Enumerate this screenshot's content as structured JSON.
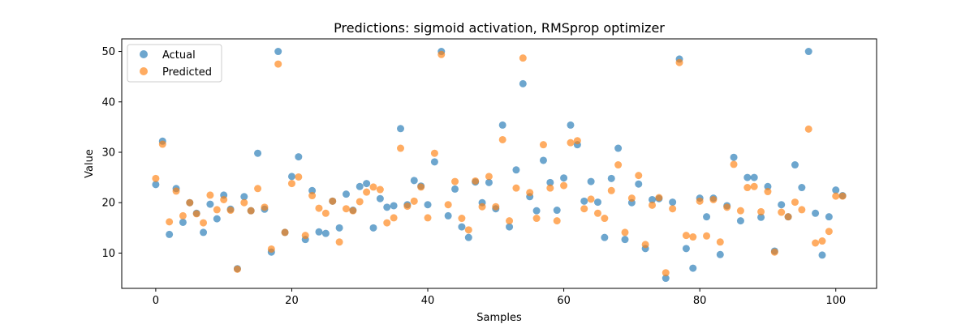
{
  "chart_data": {
    "type": "scatter",
    "title": "Predictions: sigmoid activation, RMSprop optimizer",
    "xlabel": "Samples",
    "ylabel": "Value",
    "xlim": [
      -5,
      106
    ],
    "ylim": [
      3,
      52.5
    ],
    "xticks": [
      0,
      20,
      40,
      60,
      80,
      100
    ],
    "yticks": [
      10,
      20,
      30,
      40,
      50
    ],
    "grid": false,
    "legend_position": "top-left",
    "series": [
      {
        "name": "Actual",
        "color": "#1f77b4",
        "values": [
          23.6,
          32.2,
          13.7,
          22.8,
          16.1,
          20.0,
          17.9,
          14.1,
          19.7,
          16.8,
          21.5,
          18.7,
          6.9,
          21.2,
          18.4,
          29.8,
          18.7,
          10.2,
          50.0,
          14.1,
          25.2,
          29.1,
          12.7,
          22.4,
          14.2,
          13.9,
          20.3,
          15.0,
          21.7,
          18.5,
          23.2,
          23.8,
          15.0,
          20.8,
          19.1,
          19.4,
          34.7,
          19.6,
          24.4,
          23.3,
          19.6,
          28.1,
          50.0,
          17.4,
          22.7,
          15.2,
          13.1,
          24.1,
          20.0,
          24.0,
          18.8,
          35.4,
          15.2,
          26.5,
          43.6,
          21.2,
          18.4,
          28.4,
          24.0,
          18.5,
          24.9,
          35.4,
          31.5,
          20.3,
          24.2,
          20.1,
          13.1,
          24.8,
          30.8,
          12.7,
          20.0,
          23.7,
          10.9,
          20.6,
          20.8,
          5.0,
          20.1,
          48.5,
          10.9,
          7.0,
          20.9,
          17.2,
          20.9,
          9.7,
          19.4,
          29.0,
          16.4,
          25.0,
          25.0,
          17.1,
          23.2,
          10.4,
          19.6,
          17.2,
          27.5,
          23.0,
          50.0,
          17.9,
          9.6,
          17.2,
          22.5,
          21.4
        ]
      },
      {
        "name": "Predicted",
        "color": "#ff7f0e",
        "values": [
          24.8,
          31.6,
          16.2,
          22.3,
          17.4,
          20.0,
          17.8,
          16.0,
          21.5,
          18.6,
          20.6,
          18.5,
          6.8,
          20.0,
          18.4,
          22.8,
          19.1,
          10.8,
          47.5,
          14.1,
          23.8,
          25.1,
          13.5,
          21.4,
          18.9,
          17.9,
          20.3,
          12.2,
          18.8,
          18.4,
          20.2,
          22.1,
          23.1,
          22.6,
          16.0,
          17.0,
          30.8,
          19.3,
          20.3,
          23.1,
          17.0,
          29.8,
          49.4,
          19.6,
          24.2,
          16.9,
          14.6,
          24.3,
          19.2,
          25.2,
          19.2,
          32.5,
          16.4,
          22.9,
          48.7,
          22.0,
          16.9,
          31.5,
          22.9,
          16.4,
          23.4,
          31.9,
          32.3,
          18.8,
          20.7,
          17.9,
          16.9,
          22.4,
          27.5,
          14.1,
          20.9,
          25.4,
          11.7,
          19.5,
          21.0,
          6.1,
          18.8,
          47.8,
          13.5,
          13.2,
          20.3,
          13.4,
          20.6,
          12.2,
          19.1,
          27.6,
          18.4,
          23.0,
          23.2,
          18.2,
          22.2,
          10.2,
          18.1,
          17.2,
          20.1,
          18.6,
          34.6,
          12.0,
          12.4,
          14.3,
          21.3,
          21.3
        ]
      }
    ]
  }
}
